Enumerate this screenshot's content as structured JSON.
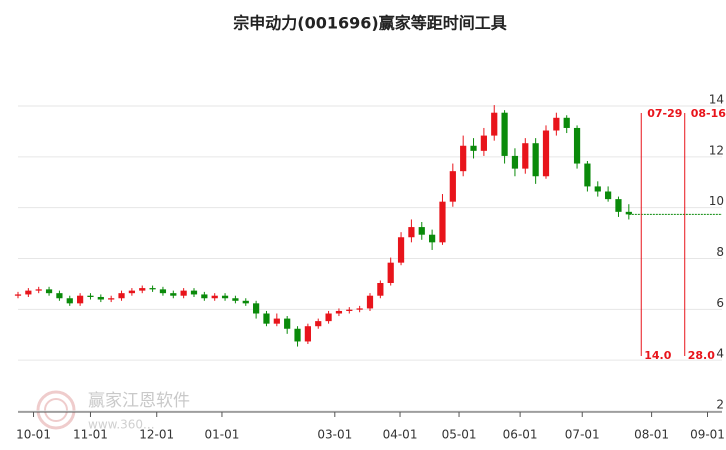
{
  "chart_data": {
    "type": "candlestick",
    "title": "宗申动力(001696)赢家等距时间工具",
    "watermark": "赢家江恩软件",
    "watermark_url": "www.360...",
    "up_color": "#e8141b",
    "down_color": "#0a8a0a",
    "x": [
      0,
      1,
      2,
      3,
      4,
      5,
      6,
      7,
      8,
      9,
      10,
      11,
      12,
      13,
      14,
      15,
      16,
      17,
      18,
      19,
      20,
      21,
      22,
      23,
      24,
      25,
      26,
      27,
      28,
      29,
      30,
      31,
      32,
      33,
      34,
      35,
      36,
      37,
      38,
      39,
      40,
      41,
      42,
      43,
      44,
      45,
      46,
      47,
      48,
      49,
      50,
      51,
      52,
      53,
      54,
      55,
      56,
      57,
      58,
      59
    ],
    "open": [
      6.3,
      6.35,
      6.5,
      6.55,
      6.4,
      6.2,
      6.0,
      6.3,
      6.25,
      6.15,
      6.2,
      6.4,
      6.5,
      6.6,
      6.55,
      6.4,
      6.3,
      6.5,
      6.35,
      6.2,
      6.3,
      6.2,
      6.1,
      6.0,
      5.6,
      5.2,
      5.4,
      5.0,
      4.5,
      5.1,
      5.3,
      5.6,
      5.7,
      5.75,
      5.8,
      6.3,
      6.8,
      7.6,
      8.6,
      9.0,
      8.7,
      8.4,
      10.0,
      11.2,
      12.2,
      12.0,
      12.6,
      13.5,
      11.8,
      11.3,
      12.3,
      11.0,
      12.8,
      13.3,
      12.9,
      11.5,
      10.6,
      10.4,
      10.1,
      9.6
    ],
    "high": [
      6.45,
      6.6,
      6.65,
      6.65,
      6.5,
      6.3,
      6.4,
      6.4,
      6.35,
      6.3,
      6.5,
      6.6,
      6.7,
      6.7,
      6.65,
      6.5,
      6.6,
      6.6,
      6.45,
      6.4,
      6.4,
      6.3,
      6.2,
      6.1,
      5.7,
      5.6,
      5.5,
      5.1,
      5.2,
      5.4,
      5.7,
      5.8,
      5.85,
      5.9,
      6.4,
      6.9,
      7.8,
      8.8,
      9.3,
      9.2,
      8.9,
      10.3,
      11.5,
      12.6,
      12.5,
      12.9,
      13.8,
      13.6,
      12.1,
      12.5,
      12.5,
      13.0,
      13.5,
      13.4,
      13.0,
      11.6,
      10.8,
      10.6,
      10.2,
      9.9
    ],
    "low": [
      6.2,
      6.25,
      6.4,
      6.3,
      6.1,
      5.9,
      5.9,
      6.15,
      6.05,
      6.05,
      6.1,
      6.3,
      6.4,
      6.45,
      6.3,
      6.2,
      6.2,
      6.25,
      6.1,
      6.1,
      6.1,
      6.0,
      5.9,
      5.4,
      5.1,
      5.1,
      4.8,
      4.3,
      4.4,
      5.0,
      5.2,
      5.5,
      5.6,
      5.65,
      5.7,
      6.2,
      6.7,
      7.5,
      8.4,
      8.5,
      8.1,
      8.3,
      9.8,
      11.0,
      11.7,
      11.8,
      12.4,
      11.5,
      11.0,
      11.1,
      10.7,
      10.9,
      12.6,
      12.7,
      11.3,
      10.4,
      10.2,
      10.0,
      9.4,
      9.3
    ],
    "close": [
      6.35,
      6.5,
      6.55,
      6.4,
      6.2,
      6.0,
      6.3,
      6.25,
      6.15,
      6.2,
      6.4,
      6.5,
      6.6,
      6.55,
      6.4,
      6.3,
      6.5,
      6.35,
      6.2,
      6.3,
      6.2,
      6.1,
      6.0,
      5.6,
      5.2,
      5.4,
      5.0,
      4.5,
      5.1,
      5.3,
      5.6,
      5.7,
      5.75,
      5.8,
      6.3,
      6.8,
      7.6,
      8.6,
      9.0,
      8.7,
      8.4,
      10.0,
      11.2,
      12.2,
      12.0,
      12.6,
      13.5,
      11.8,
      11.3,
      12.3,
      11.0,
      12.8,
      13.3,
      12.9,
      11.5,
      10.6,
      10.4,
      10.1,
      9.6,
      9.5
    ],
    "reference_line": 9.5,
    "reference_color": "#0a8a0a",
    "markers": [
      {
        "x": 60.2,
        "date": "07-29",
        "span": {
          "value": 14,
          "label": "14.0"
        }
      },
      {
        "x": 64.4,
        "date": "08-16",
        "span": {
          "value": 28,
          "label": "28.0"
        }
      }
    ],
    "marker_color": "#e8141b",
    "xlim": [
      0,
      68
    ],
    "xticks": [
      {
        "value": 1.5,
        "label": "10-01"
      },
      {
        "value": 7.0,
        "label": "11-01"
      },
      {
        "value": 13.4,
        "label": "12-01"
      },
      {
        "value": 19.7,
        "label": "01-01"
      },
      {
        "value": 30.6,
        "label": "03-01"
      },
      {
        "value": 36.9,
        "label": "04-01"
      },
      {
        "value": 42.6,
        "label": "05-01"
      },
      {
        "value": 48.5,
        "label": "06-01"
      },
      {
        "value": 54.5,
        "label": "07-01"
      },
      {
        "value": 61.2,
        "label": "08-01"
      },
      {
        "value": 66.6,
        "label": "09-01"
      }
    ],
    "ylim": [
      2,
      14
    ],
    "yticks": [
      2,
      4,
      6,
      8,
      10,
      12,
      14
    ],
    "grid": true
  }
}
